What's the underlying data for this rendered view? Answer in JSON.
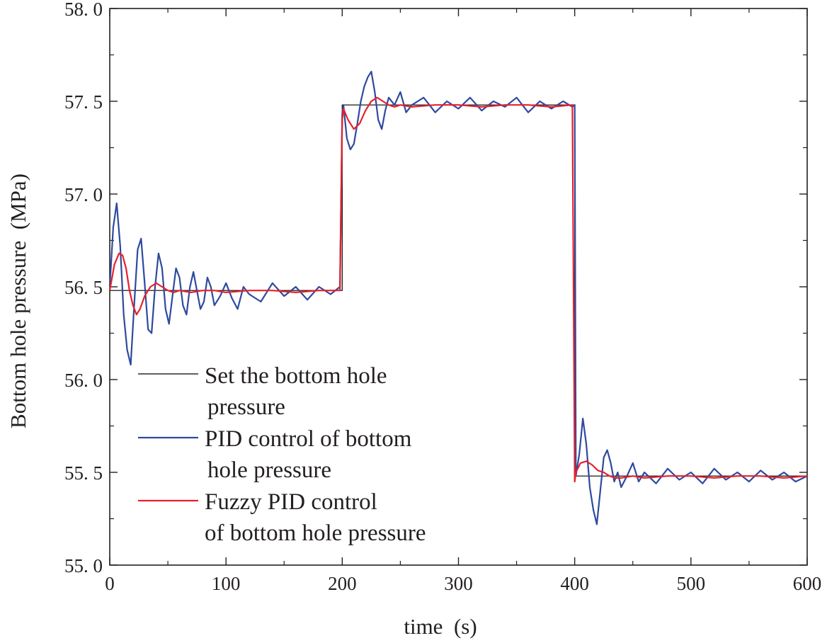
{
  "chart_data": {
    "type": "line",
    "xlabel": "time (s)",
    "ylabel": "Bottom hole pressure (MPa)",
    "xlim": [
      0,
      600
    ],
    "ylim": [
      55.0,
      58.0
    ],
    "x_ticks": [
      0,
      100,
      200,
      300,
      400,
      500,
      600
    ],
    "x_tick_labels": [
      "0",
      "100",
      "200",
      "300",
      "400",
      "500",
      "600"
    ],
    "y_ticks": [
      55.0,
      55.5,
      56.0,
      56.5,
      57.0,
      57.5,
      58.0
    ],
    "y_tick_labels": [
      "55. 0",
      "55. 5",
      "56. 0",
      "56. 5",
      "57. 0",
      "57. 5",
      "58. 0"
    ],
    "grid": false,
    "legend_position": "lower-left",
    "series": [
      {
        "name": "Set the bottom hole pressure",
        "label_lines": [
          "Set the bottom hole",
          "pressure"
        ],
        "color": "#000000",
        "x": [
          0,
          200,
          200,
          400,
          400,
          600
        ],
        "y": [
          56.48,
          56.48,
          57.48,
          57.48,
          55.48,
          55.48
        ]
      },
      {
        "name": "PID control of bottom hole pressure",
        "label_lines": [
          "PID control of bottom",
          "hole pressure"
        ],
        "color": "#2e4a9e",
        "x": [
          0,
          3,
          6,
          9,
          12,
          15,
          18,
          21,
          24,
          27,
          30,
          33,
          36,
          39,
          42,
          45,
          48,
          51,
          54,
          57,
          60,
          63,
          66,
          69,
          72,
          75,
          78,
          81,
          84,
          87,
          90,
          95,
          100,
          105,
          110,
          115,
          120,
          130,
          140,
          150,
          160,
          170,
          180,
          190,
          198,
          200,
          201,
          204,
          207,
          210,
          213,
          216,
          219,
          222,
          225,
          228,
          231,
          234,
          237,
          240,
          245,
          250,
          255,
          260,
          270,
          280,
          290,
          300,
          310,
          320,
          330,
          340,
          350,
          360,
          370,
          380,
          390,
          398,
          400,
          401,
          404,
          407,
          410,
          413,
          416,
          419,
          422,
          425,
          428,
          431,
          434,
          437,
          440,
          445,
          450,
          455,
          460,
          470,
          480,
          490,
          500,
          510,
          520,
          530,
          540,
          550,
          560,
          570,
          580,
          590,
          600
        ],
        "y": [
          56.5,
          56.82,
          56.95,
          56.72,
          56.35,
          56.16,
          56.08,
          56.4,
          56.7,
          56.76,
          56.52,
          56.27,
          56.25,
          56.5,
          56.68,
          56.6,
          56.38,
          56.3,
          56.45,
          56.6,
          56.55,
          56.4,
          56.35,
          56.5,
          56.58,
          56.48,
          56.38,
          56.42,
          56.55,
          56.5,
          56.4,
          56.45,
          56.52,
          56.44,
          56.38,
          56.5,
          56.46,
          56.42,
          56.52,
          56.45,
          56.5,
          56.43,
          56.5,
          56.46,
          56.5,
          57.43,
          57.48,
          57.3,
          57.24,
          57.27,
          57.38,
          57.5,
          57.58,
          57.63,
          57.66,
          57.55,
          57.4,
          57.35,
          57.45,
          57.52,
          57.48,
          57.55,
          57.44,
          57.48,
          57.52,
          57.44,
          57.5,
          57.46,
          57.52,
          57.45,
          57.5,
          57.47,
          57.52,
          57.44,
          57.5,
          57.46,
          57.5,
          57.47,
          57.48,
          55.48,
          55.6,
          55.79,
          55.65,
          55.42,
          55.3,
          55.22,
          55.4,
          55.58,
          55.62,
          55.55,
          55.45,
          55.5,
          55.42,
          55.48,
          55.55,
          55.45,
          55.5,
          55.44,
          55.52,
          55.46,
          55.5,
          55.44,
          55.52,
          55.46,
          55.5,
          55.45,
          55.51,
          55.46,
          55.5,
          55.45,
          55.48
        ]
      },
      {
        "name": "Fuzzy PID control of bottom hole pressure",
        "label_lines": [
          "Fuzzy PID control",
          "of bottom hole pressure"
        ],
        "color": "#e8202a",
        "x": [
          0,
          4,
          8,
          11,
          14,
          17,
          20,
          23,
          26,
          30,
          35,
          40,
          45,
          50,
          55,
          60,
          70,
          80,
          90,
          100,
          120,
          140,
          160,
          180,
          198,
          200,
          201,
          205,
          210,
          215,
          220,
          225,
          230,
          235,
          240,
          245,
          250,
          260,
          280,
          300,
          320,
          340,
          360,
          380,
          398,
          400,
          401,
          405,
          410,
          415,
          420,
          425,
          430,
          435,
          440,
          450,
          460,
          480,
          500,
          520,
          540,
          560,
          580,
          600
        ],
        "y": [
          56.48,
          56.62,
          56.68,
          56.67,
          56.6,
          56.48,
          56.4,
          56.35,
          56.38,
          56.45,
          56.5,
          56.52,
          56.5,
          56.48,
          56.47,
          56.48,
          56.47,
          56.48,
          56.48,
          56.47,
          56.48,
          56.48,
          56.47,
          56.48,
          56.48,
          57.4,
          57.46,
          57.4,
          57.35,
          57.38,
          57.45,
          57.5,
          57.52,
          57.5,
          57.48,
          57.47,
          57.48,
          57.47,
          57.48,
          57.48,
          57.47,
          57.48,
          57.48,
          57.47,
          57.48,
          55.45,
          55.5,
          55.55,
          55.56,
          55.54,
          55.51,
          55.5,
          55.48,
          55.47,
          55.47,
          55.48,
          55.47,
          55.48,
          55.48,
          55.47,
          55.48,
          55.48,
          55.47,
          55.48
        ]
      }
    ]
  }
}
